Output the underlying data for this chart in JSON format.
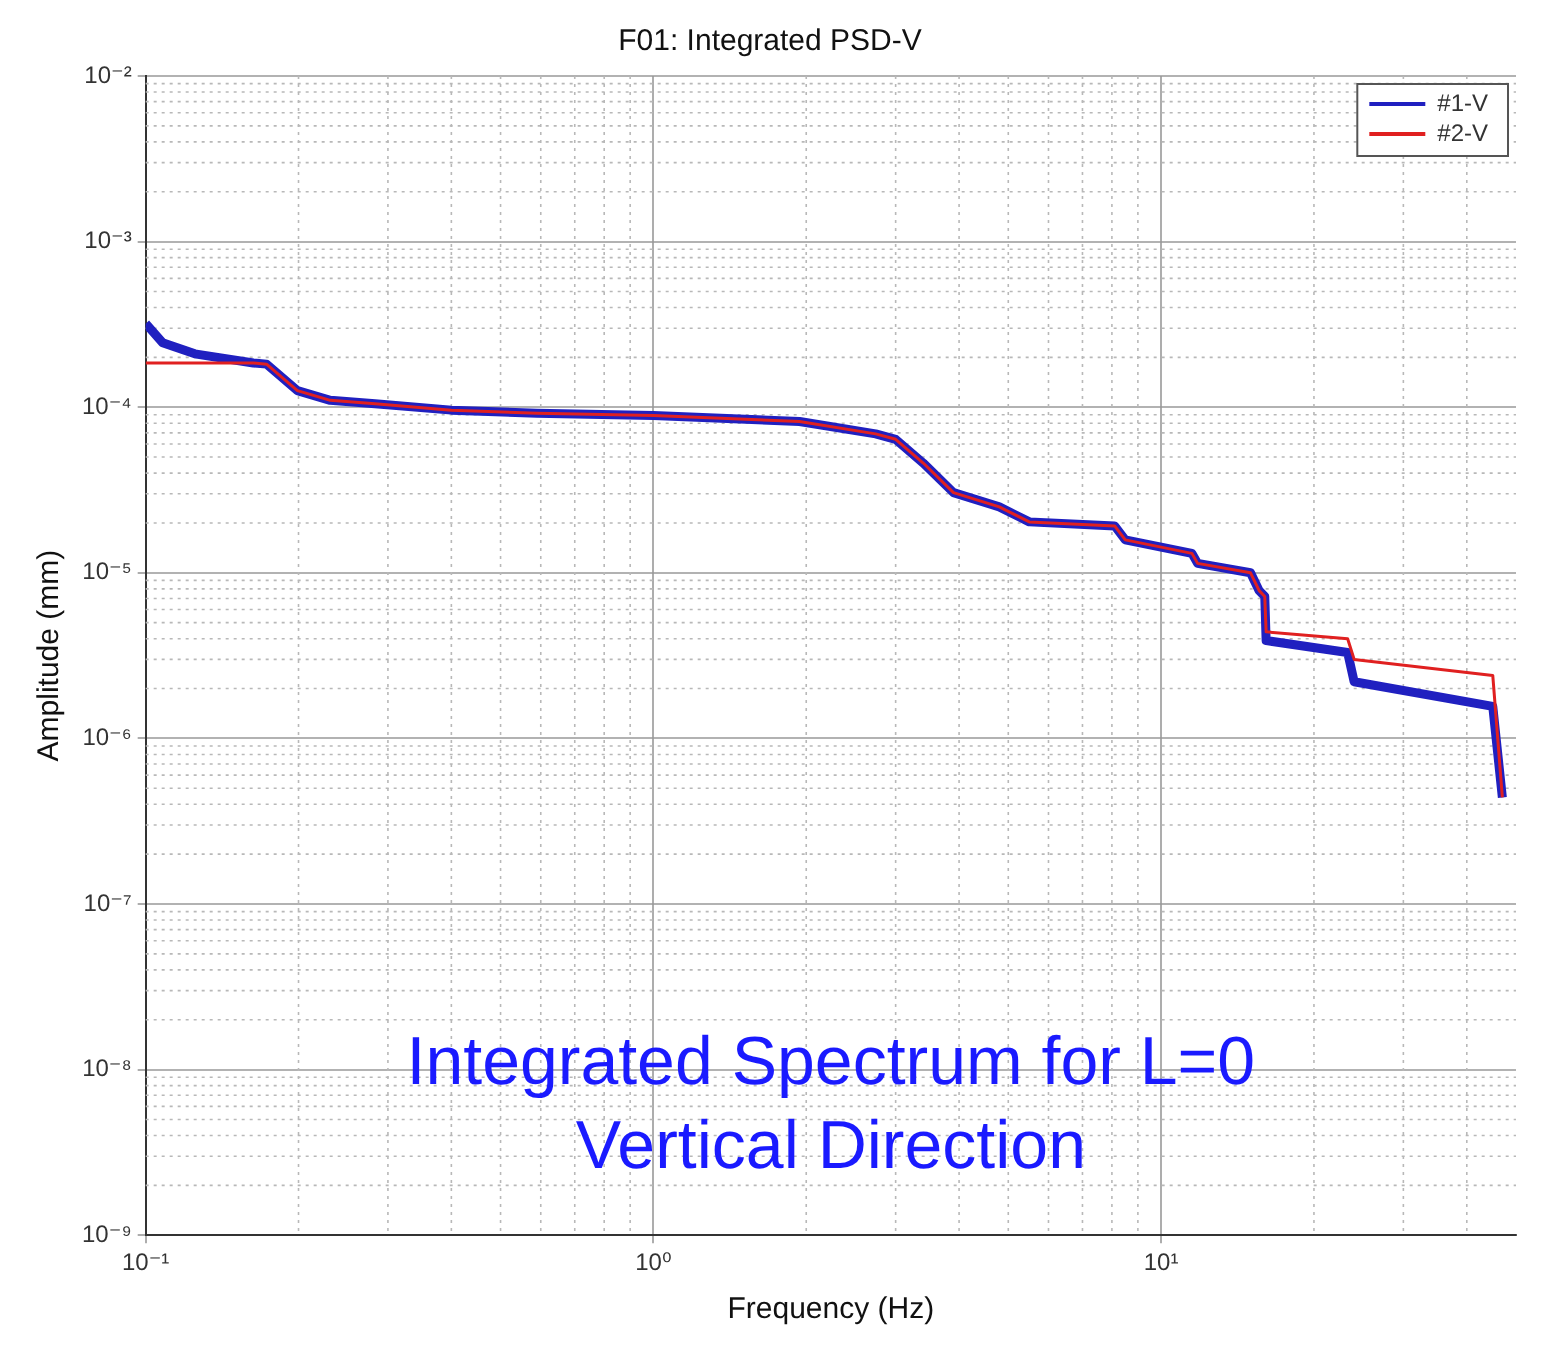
{
  "chart_data": {
    "type": "line",
    "title": "F01: Integrated PSD-V",
    "xlabel": "Frequency (Hz)",
    "ylabel": "Amplitude (mm)",
    "log": "xy",
    "grid": true,
    "legend": "top right",
    "xlim": [
      0.1,
      50
    ],
    "ylim": [
      1e-09,
      0.01
    ],
    "xticks": [
      {
        "value": 0.1,
        "label": "10⁻¹"
      },
      {
        "value": 1,
        "label": "10⁰"
      },
      {
        "value": 10,
        "label": "10¹"
      }
    ],
    "yticks": [
      {
        "value": 1e-09,
        "label": "10⁻⁹"
      },
      {
        "value": 1e-08,
        "label": "10⁻⁸"
      },
      {
        "value": 1e-07,
        "label": "10⁻⁷"
      },
      {
        "value": 1e-06,
        "label": "10⁻⁶"
      },
      {
        "value": 1e-05,
        "label": "10⁻⁵"
      },
      {
        "value": 0.0001,
        "label": "10⁻⁴"
      },
      {
        "value": 0.001,
        "label": "10⁻³"
      },
      {
        "value": 0.01,
        "label": "10⁻²"
      }
    ],
    "annotations": [
      "Integrated Spectrum for L=0",
      "Vertical Direction"
    ],
    "series": [
      {
        "name": "#1-V",
        "color": "#2020c0",
        "x": [
          0.1,
          0.108,
          0.125,
          0.163,
          0.173,
          0.199,
          0.231,
          0.283,
          0.4,
          0.59,
          1.0,
          1.94,
          2.74,
          3.0,
          3.4,
          3.9,
          4.8,
          5.5,
          8.1,
          8.5,
          11.5,
          11.8,
          15,
          15.6,
          16,
          16.1,
          23.3,
          24,
          45,
          47
        ],
        "values": [
          0.00032,
          0.000245,
          0.00021,
          0.000185,
          0.000182,
          0.000126,
          0.00011,
          0.000105,
          9.6e-05,
          9.2e-05,
          8.9e-05,
          8.2e-05,
          6.9e-05,
          6.4e-05,
          4.6e-05,
          3.05e-05,
          2.5e-05,
          2.03e-05,
          1.92e-05,
          1.58e-05,
          1.31e-05,
          1.14e-05,
          1e-05,
          7.8e-06,
          7.2e-06,
          3.9e-06,
          3.3e-06,
          2.2e-06,
          1.56e-06,
          4.4e-07
        ]
      },
      {
        "name": "#2-V",
        "color": "#e02020",
        "x": [
          0.1,
          0.163,
          0.173,
          0.199,
          0.231,
          0.283,
          0.4,
          0.59,
          1.0,
          1.94,
          2.74,
          3.0,
          3.4,
          3.9,
          4.8,
          5.5,
          8.1,
          8.5,
          11.5,
          11.8,
          15,
          15.6,
          16,
          16.1,
          23.3,
          24,
          45,
          47
        ],
        "values": [
          0.000185,
          0.000185,
          0.000182,
          0.000126,
          0.00011,
          0.000105,
          9.6e-05,
          9.2e-05,
          8.9e-05,
          8.2e-05,
          6.9e-05,
          6.4e-05,
          4.6e-05,
          3.05e-05,
          2.5e-05,
          2.03e-05,
          1.92e-05,
          1.58e-05,
          1.31e-05,
          1.14e-05,
          1e-05,
          7.8e-06,
          7.2e-06,
          4.4e-06,
          4e-06,
          3e-06,
          2.4e-06,
          4.4e-07
        ]
      }
    ]
  }
}
